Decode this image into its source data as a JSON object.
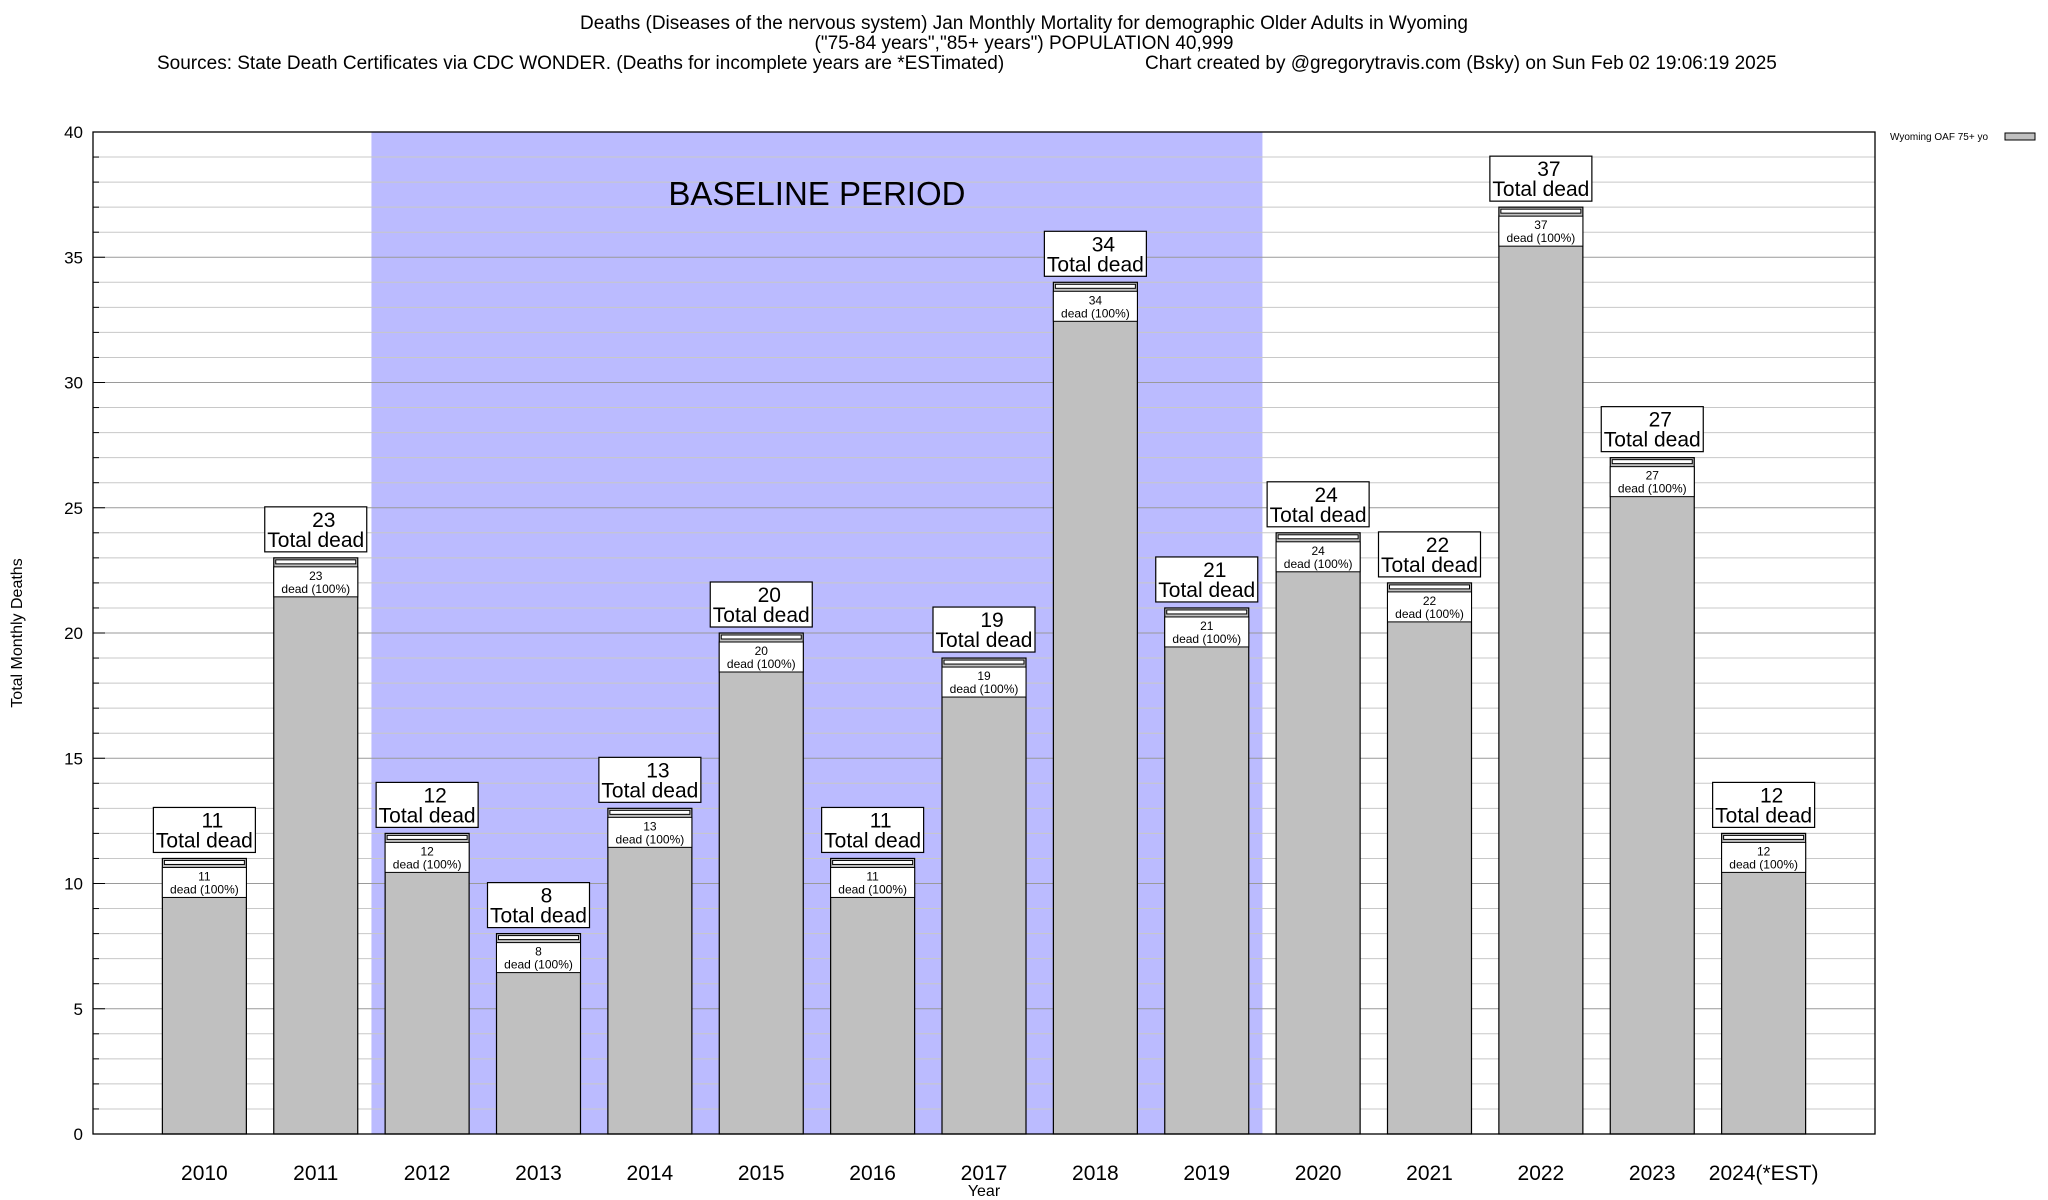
{
  "header": {
    "title_line1": "Deaths (Diseases of the nervous system) Jan Monthly Mortality for demographic Older Adults in Wyoming",
    "title_line2": "(\"75-84 years\",\"85+ years\") POPULATION 40,999",
    "sources": "Sources: State Death Certificates via CDC WONDER. (Deaths for incomplete years are *ESTimated)",
    "credit": "Chart created by @gregorytravis.com (Bsky) on Sun Feb 02 19:06:19 2025"
  },
  "chart_data": {
    "type": "bar",
    "title": "Deaths (Diseases of the nervous system) Jan Monthly Mortality for demographic Older Adults in Wyoming",
    "xlabel": "Year",
    "ylabel": "Total Monthly Deaths",
    "ylim": [
      0,
      40
    ],
    "yticks": [
      0,
      5,
      10,
      15,
      20,
      25,
      30,
      35,
      40
    ],
    "grid": true,
    "legend_position": "top-right",
    "categories": [
      "2010",
      "2011",
      "2012",
      "2013",
      "2014",
      "2015",
      "2016",
      "2017",
      "2018",
      "2019",
      "2020",
      "2021",
      "2022",
      "2023",
      "2024(*EST)"
    ],
    "series": [
      {
        "name": "Wyoming OAF 75+ yo",
        "color": "#c0c0c0",
        "values": [
          11,
          23,
          12,
          8,
          13,
          20,
          11,
          19,
          34,
          21,
          24,
          22,
          37,
          27,
          12
        ]
      }
    ],
    "top_label_suffix": "Total dead",
    "inner_label_suffix": "dead (100%)",
    "baseline": {
      "label": "BASELINE PERIOD",
      "from": "2012",
      "to": "2019",
      "color": "#bbbbff"
    }
  }
}
